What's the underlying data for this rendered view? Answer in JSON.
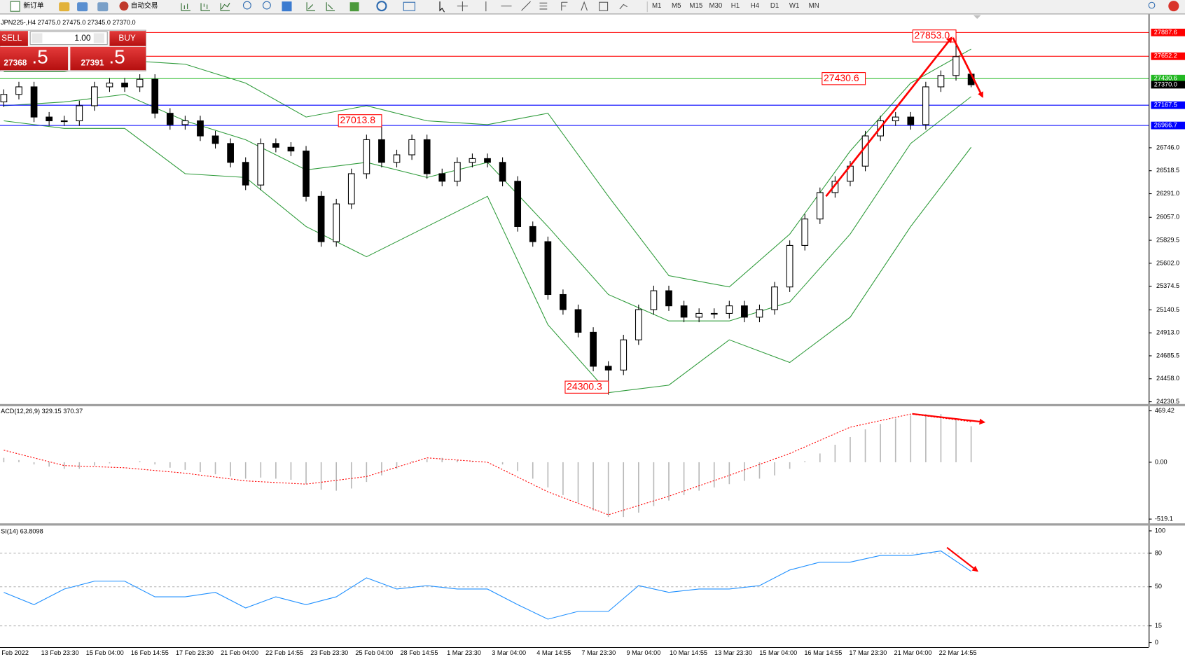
{
  "toolbar": {
    "new_order": "新订单",
    "auto_trading": "自动交易",
    "timeframes": [
      "M1",
      "M5",
      "M15",
      "M30",
      "H1",
      "H4",
      "D1",
      "W1",
      "MN"
    ]
  },
  "trade_panel": {
    "sell": "SELL",
    "buy": "BUY",
    "volume": "1.00",
    "sell_price": "27368",
    "sell_price_big": ".5",
    "buy_price": "27391",
    "buy_price_big": ".5"
  },
  "x_labels": [
    "Feb 2022",
    "13 Feb 23:30",
    "15 Feb 04:00",
    "16 Feb 14:55",
    "17 Feb 23:30",
    "21 Feb 04:00",
    "22 Feb 14:55",
    "23 Feb 23:30",
    "25 Feb 04:00",
    "28 Feb 14:55",
    "1 Mar 23:30",
    "3 Mar 04:00",
    "4 Mar 14:55",
    "7 Mar 23:30",
    "9 Mar 04:00",
    "10 Mar 14:55",
    "13 Mar 23:30",
    "15 Mar 04:00",
    "16 Mar 14:55",
    "17 Mar 23:30",
    "21 Mar 04:00",
    "22 Mar 14:55"
  ],
  "chart_data": [
    {
      "type": "candlestick",
      "title": "JPN225-,H4  27475.0 27475.0 27345.0 27370.0",
      "ylim": [
        24208.0,
        28059.6
      ],
      "yticks": [
        {
          "value": 26746,
          "label": "26746.0"
        },
        26518.5,
        {
          "value": 26291,
          "label": "26291.0"
        },
        {
          "value": 26057,
          "label": "26057.0"
        },
        25829.5,
        {
          "value": 25602,
          "label": "25602.0"
        },
        25374.5,
        25140.5,
        {
          "value": 24913,
          "label": "24913.0"
        },
        24685.5,
        {
          "value": 24458,
          "label": "24458.0"
        },
        24230.5
      ],
      "open": [
        27200.0,
        27274.3,
        27349.1,
        27050.0,
        27012.6,
        27012.6,
        27162.1,
        27349.1,
        27386.5,
        27349.1,
        27423.9,
        27087.3,
        26975.2,
        27012.6,
        26863.0,
        26788.2,
        26601.2,
        26376.8,
        26788.2,
        26750.8,
        26713.4,
        26264.7,
        25815.9,
        26189.9,
        26489.0,
        26825.6,
        26601.2,
        26676.0,
        26825.6,
        26489.0,
        26414.2,
        26601.2,
        26638.6,
        26601.2,
        26414.2,
        25965.5,
        25815.9,
        25292.4,
        25142.8,
        24918.4,
        24581.9,
        24544.5,
        24843.6,
        25142.8,
        25329.8,
        25180.2,
        25068.0,
        25105.4,
        25105.4,
        25180.2,
        25068.0,
        25142.8,
        25367.2,
        25778.5,
        26040.3,
        26302.0,
        26414.2,
        26563.8,
        26863.0,
        27012.6,
        27050.0,
        26975.2,
        27349.1,
        27461.3,
        27475.0
      ],
      "high": [
        27324.3,
        27399.1,
        27399.1,
        27100.0,
        27062.6,
        27212.1,
        27399.1,
        27436.5,
        27436.5,
        27473.9,
        27473.9,
        27137.3,
        27062.6,
        27062.6,
        26913.0,
        26838.2,
        26651.2,
        26838.2,
        26838.2,
        26800.8,
        26763.4,
        26314.7,
        26239.9,
        26539.0,
        26875.6,
        27013.8,
        26726.0,
        26875.6,
        26875.6,
        26539.0,
        26651.2,
        26688.6,
        26688.6,
        26651.2,
        26464.2,
        26015.5,
        25865.9,
        25342.4,
        25192.8,
        24968.4,
        24631.9,
        24893.6,
        25192.8,
        25379.8,
        25379.8,
        25230.2,
        25155.4,
        25155.4,
        25230.2,
        25230.2,
        25192.8,
        25417.2,
        25828.5,
        26090.3,
        26352.0,
        26464.2,
        26613.8,
        26913.0,
        27062.6,
        27100.0,
        27100.0,
        27399.1,
        27511.3,
        27853.0,
        27475.0
      ],
      "low": [
        27150.0,
        27224.3,
        27000.0,
        26962.6,
        26962.6,
        26962.6,
        27112.1,
        27299.1,
        27299.1,
        27299.1,
        27037.3,
        26925.2,
        26925.2,
        26813.0,
        26738.2,
        26551.2,
        26326.8,
        26326.8,
        26700.8,
        26663.4,
        26214.7,
        25765.9,
        25765.9,
        26139.9,
        26439.0,
        26551.2,
        26551.2,
        26626.0,
        26439.0,
        26364.2,
        26364.2,
        26551.2,
        26551.2,
        26364.2,
        25915.5,
        25765.9,
        25242.4,
        25092.8,
        24868.4,
        24531.9,
        24300.3,
        24494.5,
        24793.6,
        25092.8,
        25130.2,
        25018.0,
        25018.0,
        25055.4,
        25055.4,
        25018.0,
        25018.0,
        25092.8,
        25317.2,
        25728.5,
        25990.3,
        26252.0,
        26364.2,
        26513.8,
        26813.0,
        26962.6,
        26925.2,
        26925.2,
        27299.1,
        27411.3,
        27345.0
      ],
      "close": [
        27274.3,
        27349.1,
        27050.0,
        27012.6,
        27012.6,
        27162.1,
        27349.1,
        27386.5,
        27349.1,
        27423.9,
        27087.3,
        26975.2,
        27012.6,
        26863.0,
        26788.2,
        26601.2,
        26376.8,
        26788.2,
        26750.8,
        26713.4,
        26264.7,
        25815.9,
        26189.9,
        26489.0,
        26825.6,
        26601.2,
        26676.0,
        26825.6,
        26489.0,
        26414.2,
        26601.2,
        26638.6,
        26601.2,
        26414.2,
        25965.5,
        25815.9,
        25292.4,
        25142.8,
        24918.4,
        24581.9,
        24544.5,
        24843.6,
        25142.8,
        25329.8,
        25180.2,
        25068.0,
        25105.4,
        25105.4,
        25180.2,
        25068.0,
        25142.8,
        25367.2,
        25778.5,
        26040.3,
        26302.0,
        26414.2,
        26563.8,
        26863.0,
        27012.6,
        27050.0,
        26975.2,
        27349.1,
        27461.3,
        27648.3,
        27370.0
      ],
      "bands": {
        "color": "#2e9b3a",
        "upper": [
          27498.7,
          27498.7,
          27610.9,
          27573.5,
          27386.5,
          27050.0,
          27162.1,
          27012.6,
          26975.2,
          27087.3,
          26264.7,
          25479.4,
          25367.2,
          25890.7,
          26713.4,
          27386.5,
          27723.1
        ],
        "middle": [
          27162.1,
          27199.5,
          27274.3,
          27012.6,
          26825.6,
          26526.4,
          26601.2,
          26451.6,
          26601.2,
          25965.5,
          25292.4,
          25030.6,
          25030.6,
          25217.6,
          25890.7,
          26788.2,
          27251.9
        ],
        "lower": [
          27012.6,
          26937.8,
          26937.8,
          26489.0,
          26451.6,
          25965.5,
          25666.3,
          25965.5,
          26264.7,
          24993.2,
          24320.1,
          24394.9,
          24843.6,
          24619.3,
          25068.0,
          25965.5,
          26750.8
        ]
      },
      "levels": [
        {
          "value": 27887.6,
          "color": "#ff0000"
        },
        {
          "value": 27652.2,
          "color": "#ff0000"
        },
        {
          "value": 27430.6,
          "color": "#22b822"
        },
        {
          "value": 27167.5,
          "color": "#0000ff"
        },
        {
          "value": 26966.7,
          "color": "#0000ff"
        }
      ],
      "current_price": {
        "value": 27370,
        "label": "27370.0"
      },
      "annotations": [
        {
          "value": 27853,
          "label": "27853.0"
        },
        {
          "value": 27430.6,
          "label": "27430.6"
        },
        {
          "value": 27013.8,
          "label": "27013.8"
        },
        {
          "value": 24300.3,
          "label": "24300.3"
        }
      ]
    },
    {
      "type": "macd",
      "title": "ACD(12,26,9) 329.15 370.37",
      "ylim": [
        -551,
        511
      ],
      "yticks": [
        469.42,
        {
          "value": 0,
          "label": "0.00"
        },
        -519.1
      ],
      "histogram_color": "#b8b8b8",
      "signal_color": "#ff0000",
      "histogram": [
        40,
        20,
        -20,
        -40,
        -60,
        -60,
        -30,
        -10,
        0,
        10,
        -20,
        -50,
        -70,
        -90,
        -110,
        -130,
        -150,
        -140,
        -150,
        -160,
        -200,
        -250,
        -260,
        -240,
        -180,
        -120,
        -60,
        10,
        30,
        40,
        20,
        10,
        0,
        -20,
        -80,
        -150,
        -230,
        -300,
        -370,
        -440,
        -500,
        -500,
        -460,
        -400,
        -350,
        -300,
        -260,
        -230,
        -200,
        -170,
        -150,
        -120,
        -60,
        10,
        80,
        160,
        230,
        300,
        350,
        400,
        430,
        440,
        440,
        400,
        329.15
      ],
      "signal": [
        110,
        -30,
        -50,
        -100,
        -170,
        -200,
        -130,
        40,
        0,
        -270,
        -480,
        -310,
        -120,
        80,
        320,
        440,
        370.37
      ]
    },
    {
      "type": "rsi",
      "title": "SI(14) 63.8098",
      "ylim": [
        -4.05,
        104.05
      ],
      "yticks": [
        0,
        15,
        50,
        80,
        100
      ],
      "color": "#1e8fff",
      "values": [
        45,
        34,
        48,
        55,
        55,
        41,
        41,
        45,
        31,
        41,
        34,
        41,
        58,
        48,
        51,
        48,
        48,
        34,
        21,
        28,
        28,
        51,
        45,
        48,
        48,
        51,
        65,
        72,
        72,
        78,
        78,
        82,
        63.8098
      ]
    }
  ]
}
